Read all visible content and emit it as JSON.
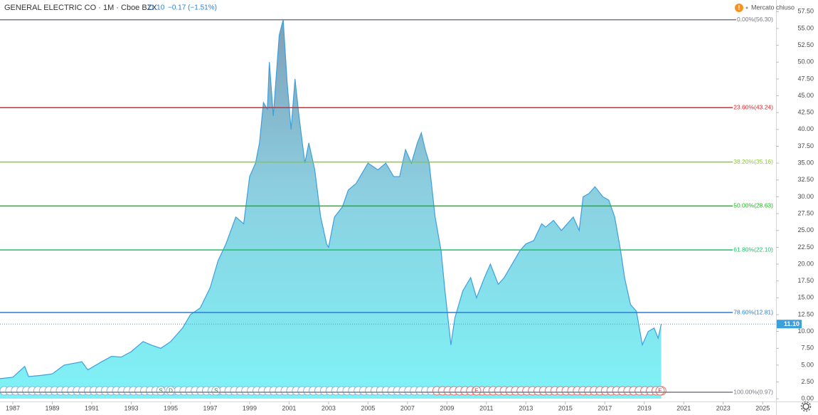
{
  "chart_data": {
    "type": "area",
    "title": "GENERAL ELECTRIC CO · 1M · Cboe BZX",
    "last_price": {
      "value": 11.1,
      "label": "11.10"
    },
    "change": "−0.17 (−1.51%)",
    "market_status": "Mercato chiuso",
    "color": "#3d9fdc",
    "x": [
      1986.35,
      1987.0,
      1987.6,
      1987.8,
      1988.5,
      1989.0,
      1989.6,
      1990.5,
      1990.8,
      1991.5,
      1992.0,
      1992.5,
      1993.0,
      1993.6,
      1994.0,
      1994.5,
      1995.0,
      1995.6,
      1996.0,
      1996.5,
      1997.0,
      1997.4,
      1997.8,
      1998.3,
      1998.7,
      1999.0,
      1999.3,
      1999.5,
      1999.7,
      1999.9,
      2000.0,
      2000.2,
      2000.5,
      2000.7,
      2000.9,
      2001.1,
      2001.3,
      2001.5,
      2001.8,
      2002.0,
      2002.3,
      2002.6,
      2002.9,
      2003.0,
      2003.3,
      2003.7,
      2004.0,
      2004.4,
      2004.7,
      2005.0,
      2005.5,
      2005.9,
      2006.3,
      2006.6,
      2006.9,
      2007.2,
      2007.5,
      2007.7,
      2007.9,
      2008.1,
      2008.4,
      2008.7,
      2008.9,
      2009.2,
      2009.4,
      2009.8,
      2010.2,
      2010.5,
      2010.9,
      2011.2,
      2011.6,
      2011.9,
      2012.3,
      2012.7,
      2013.0,
      2013.4,
      2013.8,
      2014.0,
      2014.4,
      2014.8,
      2015.1,
      2015.4,
      2015.7,
      2015.9,
      2016.2,
      2016.5,
      2016.9,
      2017.2,
      2017.5,
      2017.8,
      2018.0,
      2018.3,
      2018.6,
      2018.9,
      2019.2,
      2019.5,
      2019.7,
      2019.86
    ],
    "values": [
      3.0,
      3.2,
      4.8,
      3.3,
      3.5,
      3.7,
      5.0,
      5.5,
      4.3,
      5.5,
      6.3,
      6.2,
      7.0,
      8.5,
      8.0,
      7.5,
      8.5,
      10.5,
      12.5,
      13.5,
      16.5,
      20.5,
      23,
      27,
      26,
      33,
      35,
      38,
      44,
      43,
      50,
      42,
      54,
      56.3,
      47,
      40,
      47.5,
      42,
      35,
      38,
      34,
      27,
      23,
      22.5,
      27,
      28.5,
      31,
      32,
      33.5,
      35,
      34,
      35,
      33,
      33,
      37,
      35,
      38,
      39.5,
      37,
      35,
      27,
      22,
      16,
      8,
      12,
      16,
      18,
      15,
      18,
      20,
      17,
      18,
      20,
      22,
      23,
      23.5,
      26,
      25.5,
      26.5,
      25,
      26,
      27,
      25,
      30,
      30.5,
      31.5,
      30,
      29.5,
      27,
      22,
      18,
      14,
      13,
      8,
      10,
      10.5,
      9,
      11.1
    ],
    "xlim": [
      1986.35,
      2025.64
    ],
    "ylim": [
      -0.4,
      58.7
    ],
    "xticks": [
      1987,
      1989,
      1991,
      1993,
      1995,
      1997,
      1999,
      2001,
      2003,
      2005,
      2007,
      2009,
      2011,
      2013,
      2015,
      2017,
      2019,
      2021,
      2023,
      2025
    ],
    "yticks": [
      {
        "value": 0,
        "label": "0.00"
      },
      {
        "value": 2.5,
        "label": "2.50"
      },
      {
        "value": 5,
        "label": "5.00"
      },
      {
        "value": 7.5,
        "label": "7.50"
      },
      {
        "value": 10,
        "label": "10.00"
      },
      {
        "value": 12.5,
        "label": "12.50"
      },
      {
        "value": 15,
        "label": "15.00"
      },
      {
        "value": 17.5,
        "label": "17.50"
      },
      {
        "value": 20,
        "label": "20.00"
      },
      {
        "value": 22.5,
        "label": "22.50"
      },
      {
        "value": 25,
        "label": "25.00"
      },
      {
        "value": 27.5,
        "label": "27.50"
      },
      {
        "value": 30,
        "label": "30.00"
      },
      {
        "value": 32.5,
        "label": "32.50"
      },
      {
        "value": 35,
        "label": "35.00"
      },
      {
        "value": 37.5,
        "label": "37.50"
      },
      {
        "value": 40,
        "label": "40.00"
      },
      {
        "value": 42.5,
        "label": "42.50"
      },
      {
        "value": 45,
        "label": "45.00"
      },
      {
        "value": 47.5,
        "label": "47.50"
      },
      {
        "value": 50,
        "label": "50.00"
      },
      {
        "value": 52.5,
        "label": "52.50"
      },
      {
        "value": 55,
        "label": "55.00"
      },
      {
        "value": 57.5,
        "label": "57.50"
      }
    ],
    "fib_levels": [
      {
        "value": 56.3,
        "label": "0.00%(56.30)",
        "color": "#787b86"
      },
      {
        "value": 43.24,
        "label": "23.60%(43.24)",
        "color": "#e0262d"
      },
      {
        "value": 35.16,
        "label": "38.20%(35.16)",
        "color": "#8cc63f"
      },
      {
        "value": 28.63,
        "label": "50.00%(28.63)",
        "color": "#22b322"
      },
      {
        "value": 22.1,
        "label": "61.80%(22.10)",
        "color": "#1fbf6a"
      },
      {
        "value": 12.81,
        "label": "78.60%(12.81)",
        "color": "#2a7fd1"
      },
      {
        "value": 0.97,
        "label": "100.00%(0.97)",
        "color": "#787b86"
      }
    ],
    "events": [
      {
        "x": 1994.5,
        "label": "S"
      },
      {
        "x": 1995.0,
        "label": "D"
      },
      {
        "x": 1997.3,
        "label": "S"
      },
      {
        "x": 2010.5,
        "label": "E"
      },
      {
        "x": 2019.8,
        "label": "E"
      }
    ]
  }
}
